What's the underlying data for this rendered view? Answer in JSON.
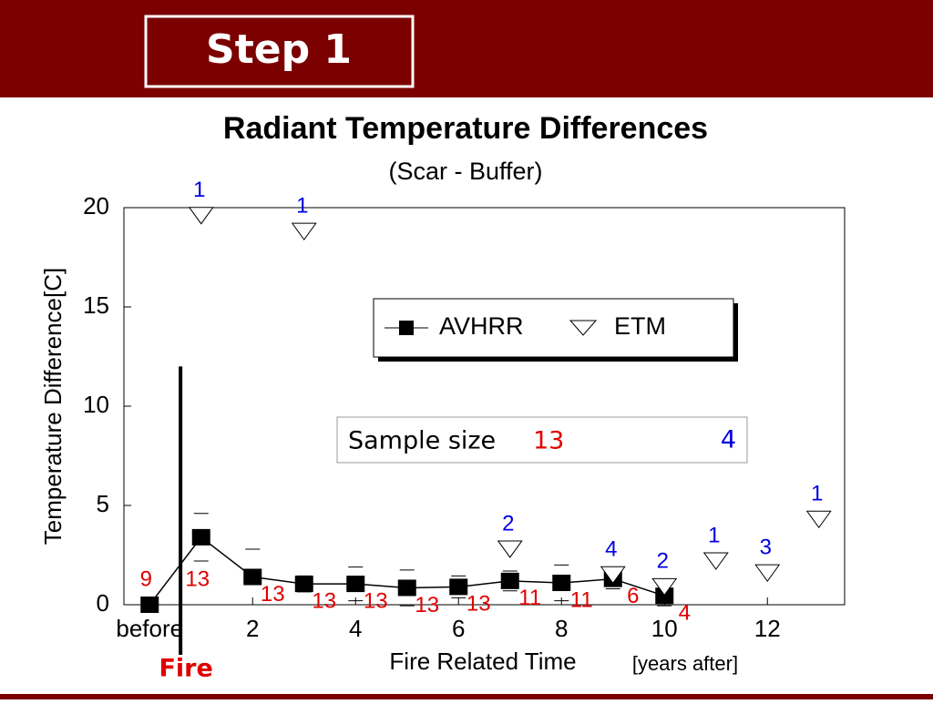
{
  "header": {
    "title": "Step 1"
  },
  "chart_data": {
    "type": "line",
    "title": "Radiant Temperature Differences",
    "subtitle": "(Scar - Buffer)",
    "x_label": "Fire Related Time",
    "x_label_note": "[years after]",
    "y_label": "Temperature Difference[C]",
    "xlim": [
      -0.5,
      13.5
    ],
    "ylim": [
      0,
      20
    ],
    "xticks": [
      {
        "value": 0,
        "label": "before"
      },
      2,
      4,
      6,
      8,
      10,
      12
    ],
    "yticks": [
      0,
      5,
      10,
      15,
      20
    ],
    "fire_marker": {
      "label": "Fire",
      "x": 0.6,
      "top": 12
    },
    "sample_size_box": {
      "label": "Sample size",
      "avhrr": 13,
      "etm": 4
    },
    "series": [
      {
        "name": "AVHRR",
        "color": "#000000",
        "marker": "square",
        "line": true,
        "x": [
          0,
          1,
          2,
          3,
          4,
          5,
          6,
          7,
          8,
          9,
          10
        ],
        "values": [
          0,
          3.4,
          1.4,
          1.05,
          1.05,
          0.85,
          0.9,
          1.2,
          1.1,
          1.3,
          0.45
        ],
        "errors": [
          0,
          1.2,
          1.4,
          0.4,
          0.85,
          0.9,
          0.55,
          0.5,
          0.9,
          0.5,
          0.5
        ],
        "sample_sizes": [
          9,
          13,
          13,
          13,
          13,
          13,
          13,
          11,
          11,
          6,
          4
        ],
        "label_color": "#e00000"
      },
      {
        "name": "ETM",
        "color": "#000000",
        "marker": "triangle-down",
        "line": false,
        "x": [
          1,
          3,
          7,
          9,
          10,
          11,
          12,
          13
        ],
        "values": [
          19.6,
          18.8,
          2.8,
          1.5,
          0.9,
          2.2,
          1.6,
          4.3
        ],
        "sample_sizes": [
          1,
          1,
          2,
          4,
          2,
          1,
          3,
          1
        ],
        "label_color": "#0000e0"
      }
    ]
  }
}
